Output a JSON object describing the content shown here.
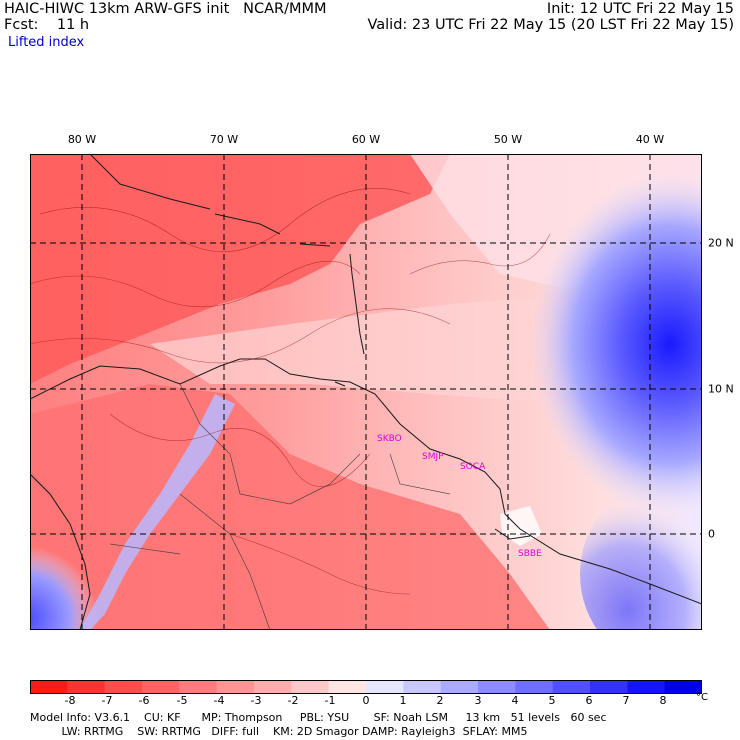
{
  "header": {
    "line1_left": "HAIC-HIWC 13km ARW-GFS init   NCAR/MMM",
    "line2_left": "Fcst:    11 h",
    "line1_right": "Init: 12 UTC Fri 22 May 15",
    "line2_right": "Valid: 23 UTC Fri 22 May 15 (20 LST Fri 22 May 15)",
    "field": "Lifted index"
  },
  "axes": {
    "lon_labels": [
      "80 W",
      "70 W",
      "60 W",
      "50 W",
      "40 W"
    ],
    "lat_labels": [
      "20 N",
      "10 N",
      "0"
    ]
  },
  "stations": [
    "SKBO",
    "SMJP",
    "SOCA",
    "SBBE"
  ],
  "colorbar": {
    "ticks": [
      "-8",
      "-7",
      "-6",
      "-5",
      "-4",
      "-3",
      "-2",
      "-1",
      "0",
      "1",
      "2",
      "3",
      "4",
      "5",
      "6",
      "7",
      "8"
    ],
    "unit": "°C",
    "colors": [
      "#ff1a1a",
      "#ff3232",
      "#ff4c4c",
      "#ff6464",
      "#ff7c7c",
      "#ff9494",
      "#ffadad",
      "#ffc8c8",
      "#ffe4e4",
      "#e6e6ff",
      "#c8c8ff",
      "#aaaaff",
      "#8c8cff",
      "#6e6eff",
      "#5050ff",
      "#3232ff",
      "#1414ff",
      "#0000e6"
    ]
  },
  "footer": {
    "line1": "Model Info: V3.6.1    CU: KF      MP: Thompson     PBL: YSU       SF: Noah LSM     13 km   51 levels   60 sec",
    "line2": "         LW: RRTMG    SW: RRTMG   DIFF: full    KM: 2D Smagor DAMP: Rayleigh3  SFLAY: MM5"
  }
}
